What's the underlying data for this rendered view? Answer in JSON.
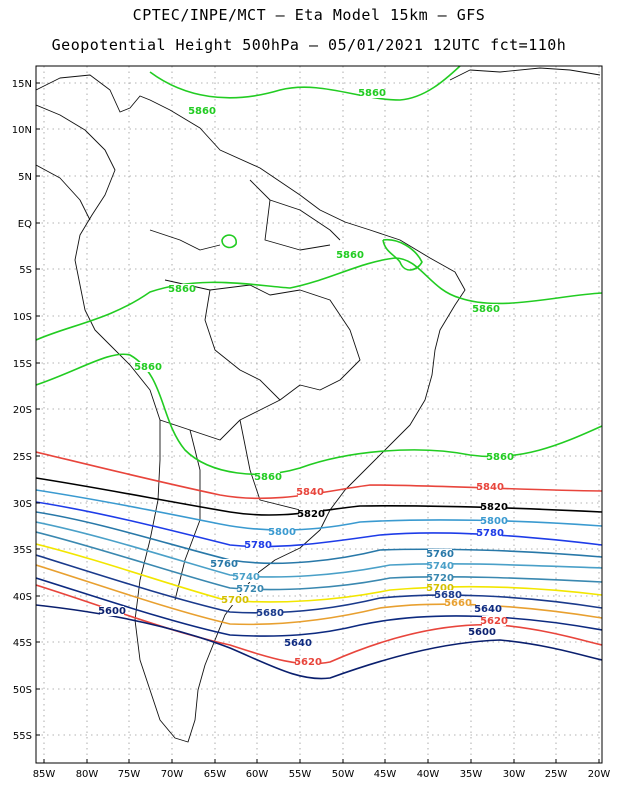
{
  "title_line1": "CPTEC/INPE/MCT  –   Eta Model 15km  –  GFS",
  "title_line2": "Geopotential Height 500hPa  –  05/01/2021 12UTC fct=110h",
  "lat_ticks": [
    "15N",
    "10N",
    "5N",
    "EQ",
    "5S",
    "10S",
    "15S",
    "20S",
    "25S",
    "30S",
    "35S",
    "40S",
    "45S",
    "50S",
    "55S"
  ],
  "lon_ticks": [
    "85W",
    "80W",
    "75W",
    "70W",
    "65W",
    "60W",
    "55W",
    "50W",
    "45W",
    "40W",
    "35W",
    "30W",
    "25W",
    "20W"
  ],
  "contour_colors": {
    "5600": "#0a1f6e",
    "5620": "#e8453c",
    "5640": "#0d2a80",
    "5660": "#e8a030",
    "5680": "#1a3a8c",
    "5700": "#f2e600",
    "5720": "#3a88b0",
    "5740": "#4aa0c8",
    "5760": "#2878a8",
    "5780": "#1e3ce8",
    "5800": "#3a9ad0",
    "5820": "#000000",
    "5840": "#e8453c",
    "5860": "#22cc22"
  },
  "contour_labels": [
    {
      "text": "5860",
      "color": "#22cc22"
    },
    {
      "text": "5860",
      "color": "#22cc22"
    },
    {
      "text": "5860",
      "color": "#22cc22"
    },
    {
      "text": "5860",
      "color": "#22cc22"
    },
    {
      "text": "5860",
      "color": "#22cc22"
    },
    {
      "text": "5860",
      "color": "#22cc22"
    },
    {
      "text": "5860",
      "color": "#22cc22"
    },
    {
      "text": "5860",
      "color": "#22cc22"
    },
    {
      "text": "5840",
      "color": "#e8453c"
    },
    {
      "text": "5840",
      "color": "#e8453c"
    },
    {
      "text": "5820",
      "color": "#000000"
    },
    {
      "text": "5820",
      "color": "#000000"
    },
    {
      "text": "5800",
      "color": "#3a9ad0"
    },
    {
      "text": "5800",
      "color": "#3a9ad0"
    },
    {
      "text": "5780",
      "color": "#1e3ce8"
    },
    {
      "text": "5780",
      "color": "#1e3ce8"
    },
    {
      "text": "5760",
      "color": "#2878a8"
    },
    {
      "text": "5760",
      "color": "#2878a8"
    },
    {
      "text": "5740",
      "color": "#4aa0c8"
    },
    {
      "text": "5740",
      "color": "#4aa0c8"
    },
    {
      "text": "5720",
      "color": "#3a88b0"
    },
    {
      "text": "5720",
      "color": "#3a88b0"
    },
    {
      "text": "5700",
      "color": "#d4c000"
    },
    {
      "text": "5700",
      "color": "#d4c000"
    },
    {
      "text": "5680",
      "color": "#1a3a8c"
    },
    {
      "text": "5680",
      "color": "#1a3a8c"
    },
    {
      "text": "5660",
      "color": "#e8a030"
    },
    {
      "text": "5640",
      "color": "#0d2a80"
    },
    {
      "text": "5640",
      "color": "#0d2a80"
    },
    {
      "text": "5620",
      "color": "#e8453c"
    },
    {
      "text": "5620",
      "color": "#e8453c"
    },
    {
      "text": "5600",
      "color": "#0a1f6e"
    },
    {
      "text": "5600",
      "color": "#0a1f6e"
    }
  ]
}
